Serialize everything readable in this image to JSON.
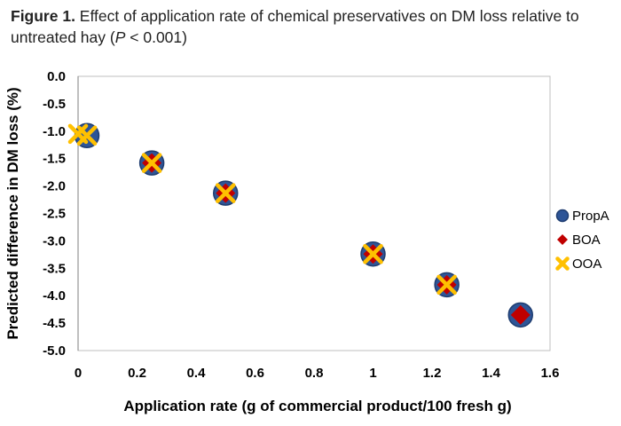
{
  "caption": {
    "label": "Figure 1.",
    "text_part1": " Effect of application rate of chemical preservatives on DM loss relative to untreated hay (",
    "p_italic": "P",
    "text_part2": " < 0.001)"
  },
  "colors": {
    "PropA": "#2E5597",
    "PropA_edge": "#1F3D70",
    "BOA": "#C00000",
    "OOA": "#FFC000",
    "plot_border": "#BFBFBF",
    "axis_line": "#7F7F7F"
  },
  "chart_data": {
    "type": "scatter",
    "xlabel": "Application rate (g of commercial product/100 fresh g)",
    "ylabel": "Predicted difference in DM loss (%)",
    "xlim": [
      0,
      1.6
    ],
    "ylim": [
      -5.0,
      0.0
    ],
    "x_ticks": [
      "0",
      "0.2",
      "0.4",
      "0.6",
      "0.8",
      "1",
      "1.2",
      "1.4",
      "1.6"
    ],
    "y_ticks": [
      "0.0",
      "-0.5",
      "-1.0",
      "-1.5",
      "-2.0",
      "-2.5",
      "-3.0",
      "-3.5",
      "-4.0",
      "-4.5",
      "-5.0"
    ],
    "grid": false,
    "legend_position": "right",
    "series": [
      {
        "name": "PropA",
        "marker": "circle",
        "points": [
          [
            0.03,
            -1.08
          ],
          [
            0.25,
            -1.58
          ],
          [
            0.5,
            -2.13
          ],
          [
            1.0,
            -3.24
          ],
          [
            1.25,
            -3.8
          ],
          [
            1.5,
            -4.35
          ]
        ]
      },
      {
        "name": "BOA",
        "marker": "diamond",
        "points": [
          [
            0.25,
            -1.58
          ],
          [
            0.5,
            -2.13
          ],
          [
            1.0,
            -3.24
          ],
          [
            1.25,
            -3.8
          ],
          [
            1.5,
            -4.35
          ]
        ]
      },
      {
        "name": "OOA",
        "marker": "x",
        "points": [
          [
            0.0,
            -1.05
          ],
          [
            0.03,
            -1.08
          ],
          [
            0.25,
            -1.58
          ],
          [
            0.5,
            -2.13
          ],
          [
            1.0,
            -3.24
          ],
          [
            1.25,
            -3.8
          ]
        ]
      }
    ]
  }
}
